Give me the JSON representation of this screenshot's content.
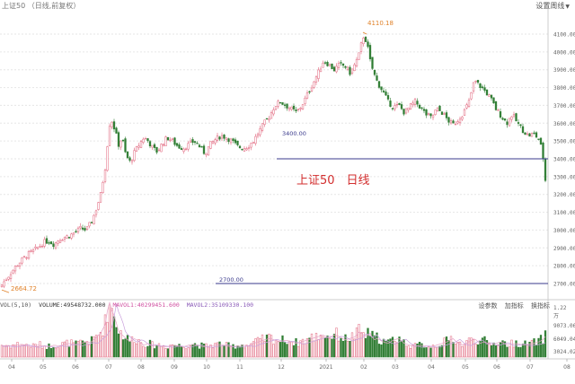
{
  "header": {
    "title": "上证50 （日线,前复权）",
    "settings_label": "设置周线"
  },
  "watermark": "上证50　日线",
  "annotations": {
    "high_label": "4110.18",
    "low_label": "2664.72",
    "line_upper_label": "3400.00",
    "line_lower_label": "2700.00"
  },
  "volume_panel": {
    "vol_label": "VOL(5,10)",
    "volume_label": "VOLUME:49548732.000",
    "mavol1_label": "MAVOL1:40299451.600",
    "mavol2_label": "MAVOL2:35109330.100",
    "buttons": [
      "设参数",
      "加指标",
      "换指标"
    ],
    "y_labels": [
      "1.22",
      "9073.06",
      "6049.04",
      "3024.02"
    ],
    "y_unit": "万"
  },
  "colors": {
    "up": "#e0627a",
    "down": "#2e7d32",
    "hline": "#3a3a8c",
    "ma1": "#e6a2c6",
    "ma2": "#c9a0dc",
    "grid": "#e6e6e6",
    "watermark": "#d32f2f",
    "high_label": "#e0822a"
  },
  "chart_data": {
    "type": "candlestick",
    "title": "上证50 日线",
    "ylim": [
      2600,
      4200
    ],
    "y_ticks": [
      "4100.00",
      "4000.00",
      "3900.00",
      "3800.00",
      "3700.00",
      "3600.00",
      "3500.00",
      "3400.00",
      "3300.00",
      "3200.00",
      "3100.00",
      "3000.00",
      "2900.00",
      "2800.00",
      "2700.00"
    ],
    "x_ticks": [
      "04",
      "05",
      "06",
      "07",
      "08",
      "09",
      "10",
      "11",
      "12",
      "2021",
      "02",
      "03",
      "04",
      "05",
      "06",
      "07",
      "08"
    ],
    "max_point": 4110.18,
    "min_point": 2664.72,
    "hlines": [
      3400,
      2700
    ],
    "close_path": [
      [
        0,
        2680
      ],
      [
        6,
        2720
      ],
      [
        12,
        2760
      ],
      [
        18,
        2800
      ],
      [
        24,
        2830
      ],
      [
        30,
        2860
      ],
      [
        36,
        2880
      ],
      [
        42,
        2900
      ],
      [
        48,
        2930
      ],
      [
        54,
        2940
      ],
      [
        60,
        2920
      ],
      [
        66,
        2950
      ],
      [
        72,
        2960
      ],
      [
        78,
        2970
      ],
      [
        84,
        2990
      ],
      [
        90,
        3010
      ],
      [
        96,
        3000
      ],
      [
        101,
        3040
      ],
      [
        106,
        3100
      ],
      [
        112,
        3200
      ],
      [
        118,
        3380
      ],
      [
        121,
        3580
      ],
      [
        124,
        3620
      ],
      [
        128,
        3560
      ],
      [
        132,
        3480
      ],
      [
        136,
        3520
      ],
      [
        140,
        3420
      ],
      [
        145,
        3380
      ],
      [
        150,
        3440
      ],
      [
        155,
        3480
      ],
      [
        160,
        3520
      ],
      [
        165,
        3500
      ],
      [
        170,
        3460
      ],
      [
        175,
        3440
      ],
      [
        180,
        3480
      ],
      [
        186,
        3520
      ],
      [
        192,
        3500
      ],
      [
        198,
        3470
      ],
      [
        204,
        3460
      ],
      [
        210,
        3480
      ],
      [
        216,
        3500
      ],
      [
        222,
        3470
      ],
      [
        228,
        3430
      ],
      [
        234,
        3480
      ],
      [
        240,
        3510
      ],
      [
        246,
        3530
      ],
      [
        252,
        3520
      ],
      [
        258,
        3500
      ],
      [
        264,
        3470
      ],
      [
        270,
        3460
      ],
      [
        276,
        3470
      ],
      [
        282,
        3500
      ],
      [
        288,
        3550
      ],
      [
        294,
        3600
      ],
      [
        300,
        3640
      ],
      [
        306,
        3700
      ],
      [
        312,
        3720
      ],
      [
        318,
        3700
      ],
      [
        324,
        3680
      ],
      [
        330,
        3660
      ],
      [
        336,
        3700
      ],
      [
        342,
        3760
      ],
      [
        348,
        3820
      ],
      [
        354,
        3880
      ],
      [
        360,
        3950
      ],
      [
        366,
        3930
      ],
      [
        372,
        3900
      ],
      [
        378,
        3930
      ],
      [
        384,
        3920
      ],
      [
        390,
        3880
      ],
      [
        396,
        3940
      ],
      [
        400,
        3990
      ],
      [
        404,
        4090
      ],
      [
        408,
        4060
      ],
      [
        412,
        3950
      ],
      [
        416,
        3880
      ],
      [
        420,
        3830
      ],
      [
        426,
        3780
      ],
      [
        432,
        3720
      ],
      [
        438,
        3690
      ],
      [
        444,
        3700
      ],
      [
        450,
        3660
      ],
      [
        456,
        3690
      ],
      [
        462,
        3720
      ],
      [
        468,
        3690
      ],
      [
        474,
        3650
      ],
      [
        480,
        3630
      ],
      [
        486,
        3680
      ],
      [
        492,
        3660
      ],
      [
        498,
        3620
      ],
      [
        504,
        3590
      ],
      [
        510,
        3620
      ],
      [
        516,
        3660
      ],
      [
        522,
        3720
      ],
      [
        528,
        3840
      ],
      [
        534,
        3810
      ],
      [
        540,
        3780
      ],
      [
        546,
        3740
      ],
      [
        552,
        3680
      ],
      [
        558,
        3640
      ],
      [
        564,
        3600
      ],
      [
        570,
        3650
      ],
      [
        576,
        3600
      ],
      [
        582,
        3560
      ],
      [
        588,
        3530
      ],
      [
        594,
        3540
      ],
      [
        600,
        3510
      ],
      [
        604,
        3430
      ],
      [
        607,
        3280
      ]
    ],
    "volumes": [
      [
        0,
        14
      ],
      [
        6,
        13
      ],
      [
        12,
        13
      ],
      [
        18,
        14
      ],
      [
        24,
        15
      ],
      [
        30,
        13
      ],
      [
        36,
        12
      ],
      [
        42,
        14
      ],
      [
        48,
        13
      ],
      [
        54,
        12
      ],
      [
        60,
        14
      ],
      [
        66,
        13
      ],
      [
        72,
        15
      ],
      [
        78,
        16
      ],
      [
        84,
        14
      ],
      [
        90,
        16
      ],
      [
        96,
        18
      ],
      [
        101,
        17
      ],
      [
        106,
        22
      ],
      [
        112,
        28
      ],
      [
        118,
        40
      ],
      [
        121,
        68
      ],
      [
        124,
        56
      ],
      [
        128,
        46
      ],
      [
        132,
        30
      ],
      [
        136,
        26
      ],
      [
        140,
        22
      ],
      [
        145,
        18
      ],
      [
        150,
        22
      ],
      [
        155,
        18
      ],
      [
        160,
        14
      ],
      [
        165,
        16
      ],
      [
        170,
        13
      ],
      [
        175,
        14
      ],
      [
        180,
        13
      ],
      [
        186,
        12
      ],
      [
        192,
        14
      ],
      [
        198,
        13
      ],
      [
        204,
        12
      ],
      [
        210,
        14
      ],
      [
        216,
        15
      ],
      [
        222,
        13
      ],
      [
        228,
        12
      ],
      [
        234,
        13
      ],
      [
        240,
        14
      ],
      [
        246,
        15
      ],
      [
        252,
        13
      ],
      [
        258,
        12
      ],
      [
        264,
        13
      ],
      [
        270,
        14
      ],
      [
        276,
        13
      ],
      [
        282,
        16
      ],
      [
        288,
        18
      ],
      [
        294,
        20
      ],
      [
        300,
        22
      ],
      [
        306,
        20
      ],
      [
        312,
        18
      ],
      [
        318,
        20
      ],
      [
        324,
        18
      ],
      [
        330,
        16
      ],
      [
        336,
        18
      ],
      [
        342,
        20
      ],
      [
        348,
        22
      ],
      [
        354,
        24
      ],
      [
        360,
        26
      ],
      [
        366,
        22
      ],
      [
        372,
        26
      ],
      [
        378,
        24
      ],
      [
        384,
        20
      ],
      [
        390,
        22
      ],
      [
        396,
        24
      ],
      [
        400,
        30
      ],
      [
        404,
        26
      ],
      [
        408,
        24
      ],
      [
        412,
        28
      ],
      [
        416,
        20
      ],
      [
        420,
        22
      ],
      [
        426,
        18
      ],
      [
        432,
        16
      ],
      [
        438,
        20
      ],
      [
        444,
        22
      ],
      [
        450,
        16
      ],
      [
        456,
        14
      ],
      [
        462,
        12
      ],
      [
        468,
        14
      ],
      [
        474,
        13
      ],
      [
        480,
        12
      ],
      [
        486,
        14
      ],
      [
        492,
        16
      ],
      [
        498,
        18
      ],
      [
        504,
        22
      ],
      [
        510,
        16
      ],
      [
        516,
        14
      ],
      [
        522,
        18
      ],
      [
        528,
        22
      ],
      [
        534,
        16
      ],
      [
        540,
        18
      ],
      [
        546,
        14
      ],
      [
        552,
        16
      ],
      [
        558,
        18
      ],
      [
        564,
        14
      ],
      [
        570,
        15
      ],
      [
        576,
        16
      ],
      [
        582,
        14
      ],
      [
        588,
        15
      ],
      [
        594,
        16
      ],
      [
        600,
        18
      ],
      [
        604,
        20
      ],
      [
        607,
        24
      ]
    ]
  }
}
